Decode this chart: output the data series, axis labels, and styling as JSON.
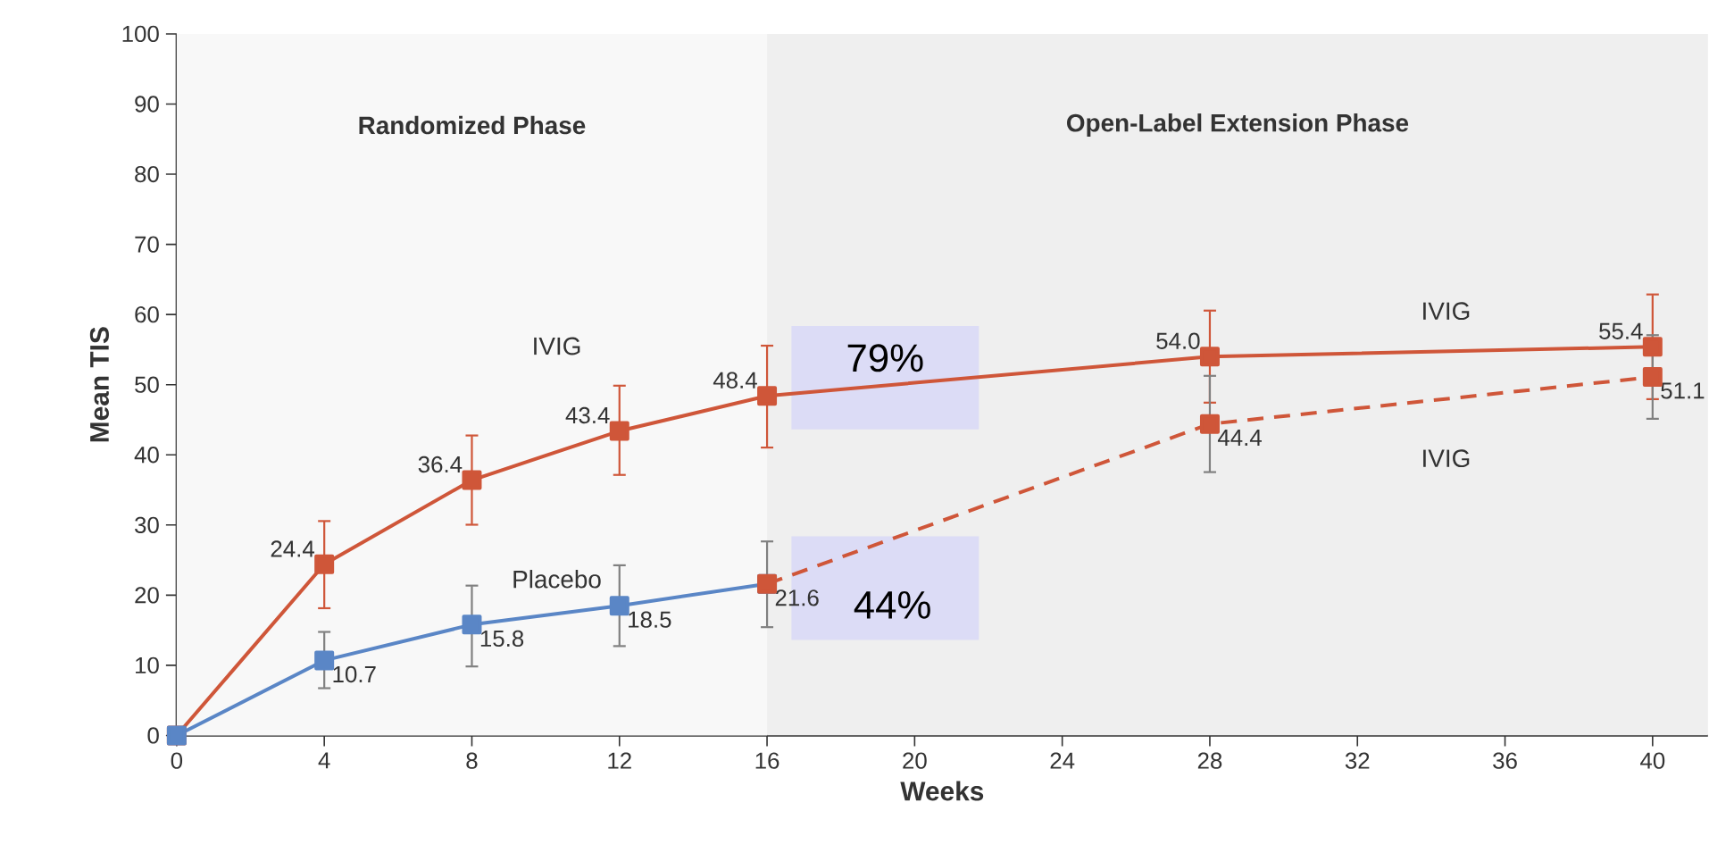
{
  "chart_data": {
    "type": "line",
    "xlabel": "Weeks",
    "ylabel": "Mean TIS",
    "x": [
      0,
      4,
      8,
      12,
      16,
      28,
      40
    ],
    "xlim": [
      0,
      41.5
    ],
    "xticks": [
      0,
      4,
      8,
      12,
      16,
      20,
      24,
      28,
      32,
      36,
      40
    ],
    "ylim": [
      0,
      100
    ],
    "yticks": [
      0,
      10,
      20,
      30,
      40,
      50,
      60,
      70,
      80,
      90,
      100
    ],
    "grid": false,
    "marker": "square",
    "series": [
      {
        "name": "IVIG",
        "color": "#cf5639",
        "line_style": "solid",
        "values": [
          0,
          24.4,
          36.4,
          43.4,
          48.4,
          54.0,
          55.4
        ],
        "errors": [
          null,
          [
            18.0,
            30.7
          ],
          [
            29.9,
            42.9
          ],
          [
            37.0,
            50.0
          ],
          [
            40.9,
            55.7
          ],
          [
            47.3,
            60.7
          ],
          [
            47.8,
            63.0
          ]
        ],
        "value_labels": [
          null,
          "24.4",
          "36.4",
          "43.4",
          "48.4",
          "54.0",
          "55.4"
        ]
      },
      {
        "name": "Placebo",
        "color": "#5a86c6",
        "line_style": "solid",
        "x": [
          0,
          4,
          8,
          12,
          16
        ],
        "values": [
          0,
          10.7,
          15.8,
          18.5,
          21.6
        ],
        "errors": [
          null,
          [
            6.6,
            14.9
          ],
          [
            9.7,
            21.5
          ],
          [
            12.6,
            24.4
          ],
          [
            15.3,
            27.8
          ]
        ],
        "value_labels": [
          null,
          "10.7",
          "15.8",
          "18.5",
          "21.6"
        ]
      },
      {
        "name": "IVIG",
        "color": "#cf5639",
        "line_style": "dashed",
        "x": [
          16,
          28,
          40
        ],
        "values": [
          21.6,
          44.4,
          51.1
        ],
        "errors": [
          null,
          [
            37.4,
            51.4
          ],
          [
            45.0,
            57.2
          ]
        ],
        "value_labels": [
          null,
          "44.4",
          "51.1"
        ]
      }
    ],
    "bands": [
      {
        "axis": "x",
        "from": 0,
        "to": 16,
        "label": "Randomized Phase",
        "color": "#f8f8f8"
      },
      {
        "axis": "x",
        "from": 16,
        "to": 41.5,
        "label": "Open-Label Extension Phase",
        "color": "#efefef"
      }
    ],
    "annotations": [
      "79%",
      "44%"
    ]
  }
}
